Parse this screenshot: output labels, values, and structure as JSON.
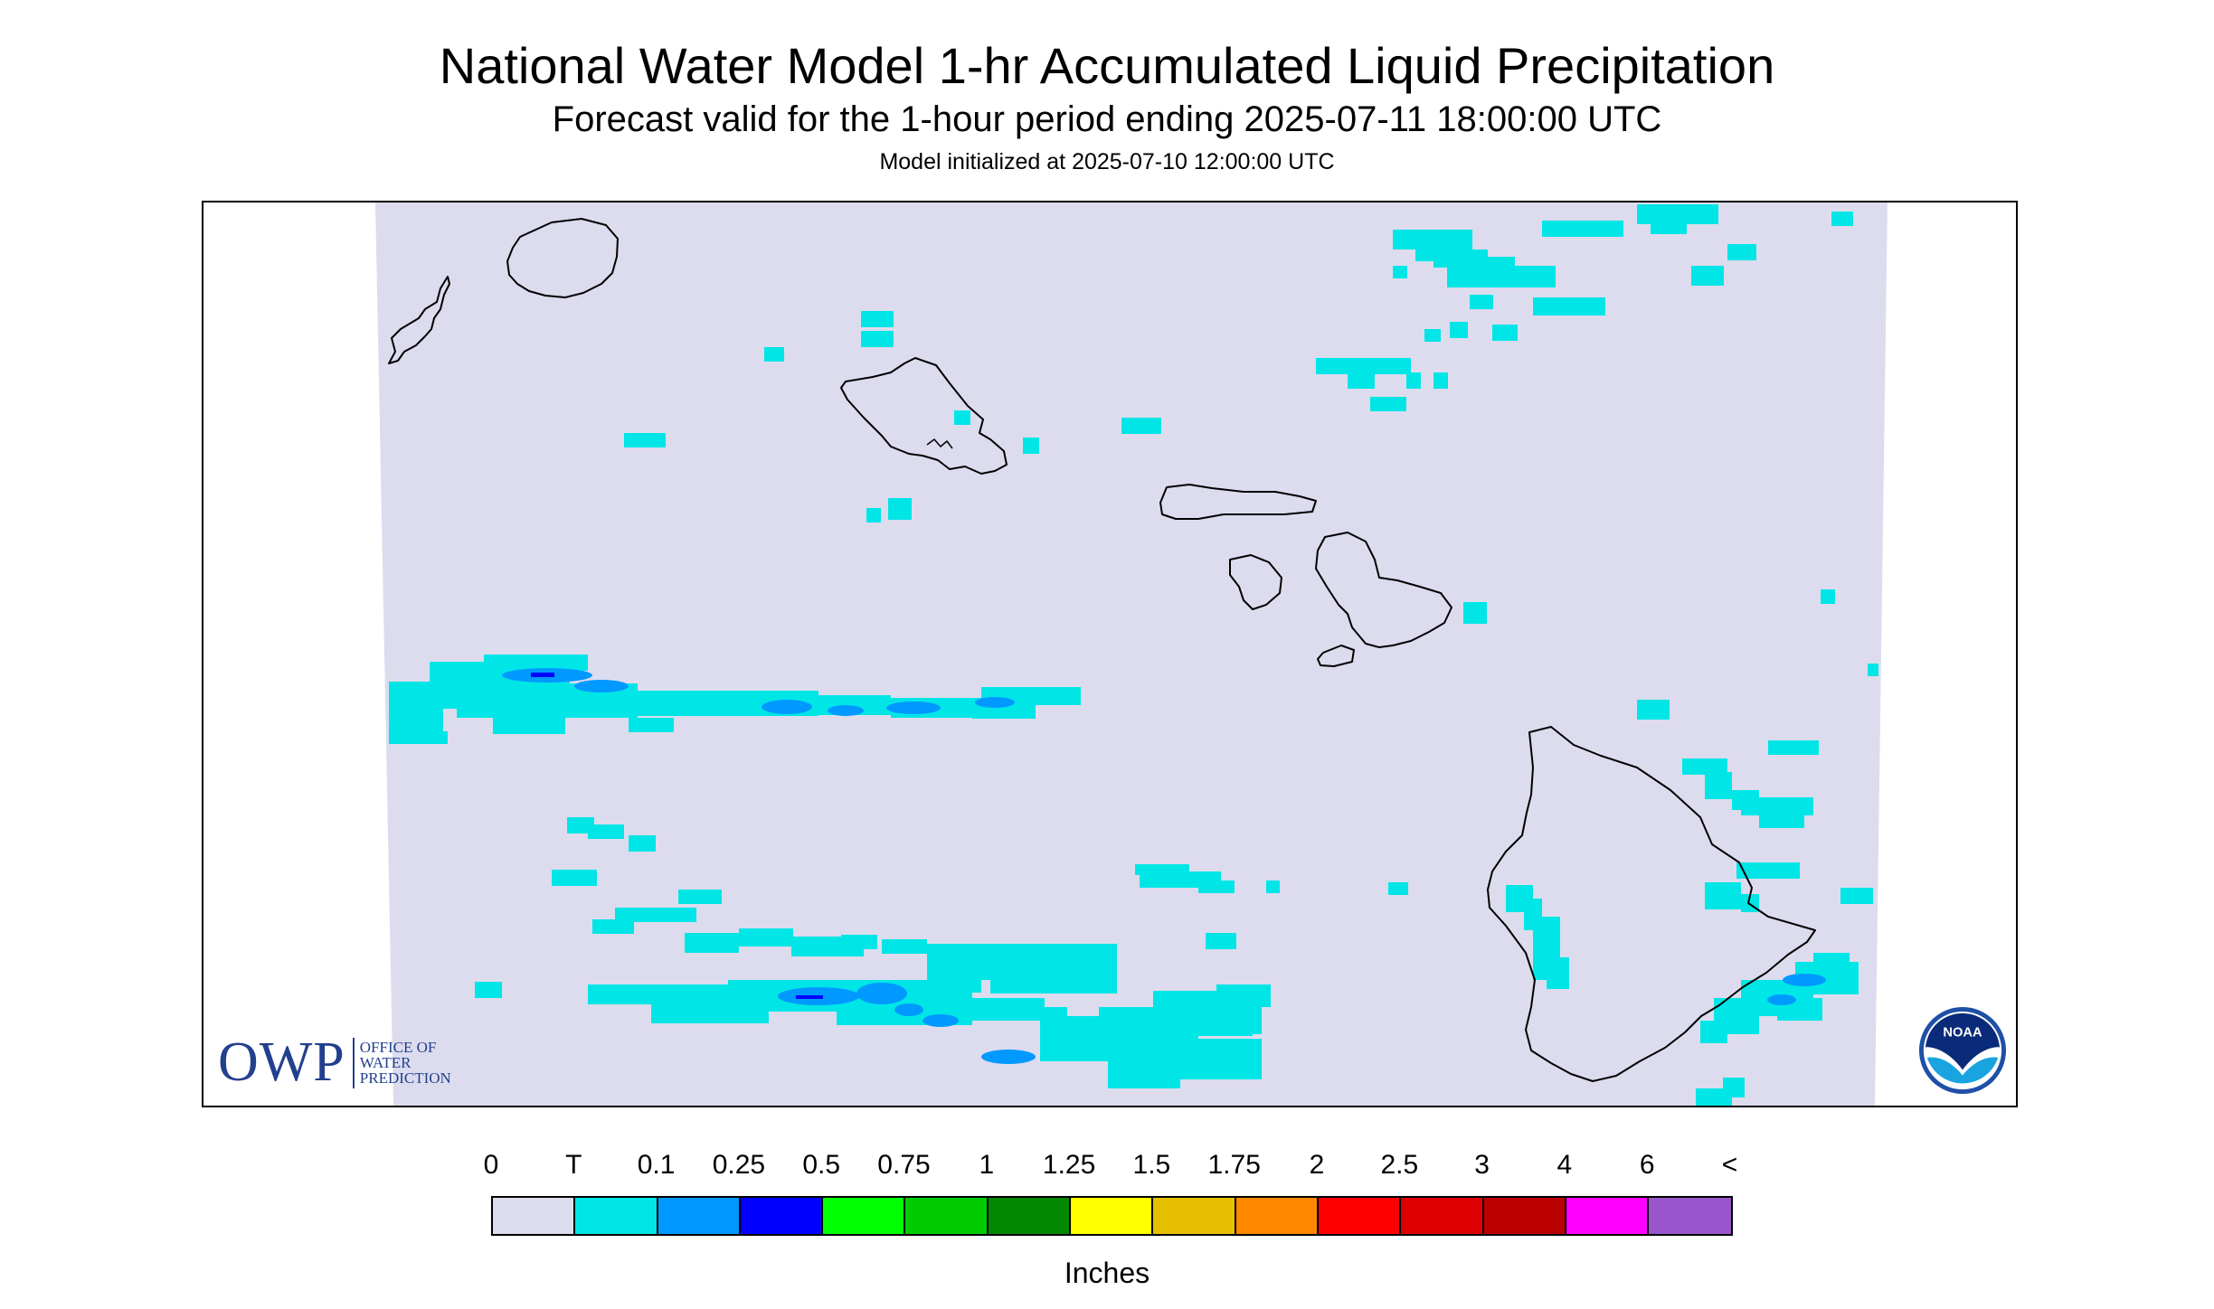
{
  "header": {
    "title": "National Water Model 1-hr Accumulated Liquid Precipitation",
    "subtitle": "Forecast valid for the 1-hour period ending 2025-07-11 18:00:00 UTC",
    "initialized": "Model initialized at 2025-07-10 12:00:00 UTC"
  },
  "map": {
    "background_color": "#dcdcee",
    "coast_color": "#000000",
    "precip_colors": {
      "trace": "#00e6e6",
      "light": "#0099ff",
      "moderate": "#0000ff"
    },
    "islands": [
      "Niihau",
      "Kauai",
      "Oahu",
      "Molokai",
      "Lanai",
      "Maui",
      "Kahoolawe",
      "Hawaii"
    ]
  },
  "logos": {
    "owp": {
      "letters": "OWP",
      "line1": "OFFICE OF",
      "line2": "WATER",
      "line3": "PREDICTION"
    },
    "noaa": {
      "letters": "NOAA"
    }
  },
  "legend": {
    "labels": [
      "0",
      "T",
      "0.1",
      "0.25",
      "0.5",
      "0.75",
      "1",
      "1.25",
      "1.5",
      "1.75",
      "2",
      "2.5",
      "3",
      "4",
      "6",
      "<"
    ],
    "colors": [
      "#dcdcee",
      "#00e6e6",
      "#0099ff",
      "#0000ff",
      "#00ff00",
      "#00cc00",
      "#008800",
      "#ffff00",
      "#e6c000",
      "#ff8800",
      "#ff0000",
      "#dd0000",
      "#bb0000",
      "#ff00ff",
      "#9955cc"
    ],
    "units": "Inches"
  }
}
